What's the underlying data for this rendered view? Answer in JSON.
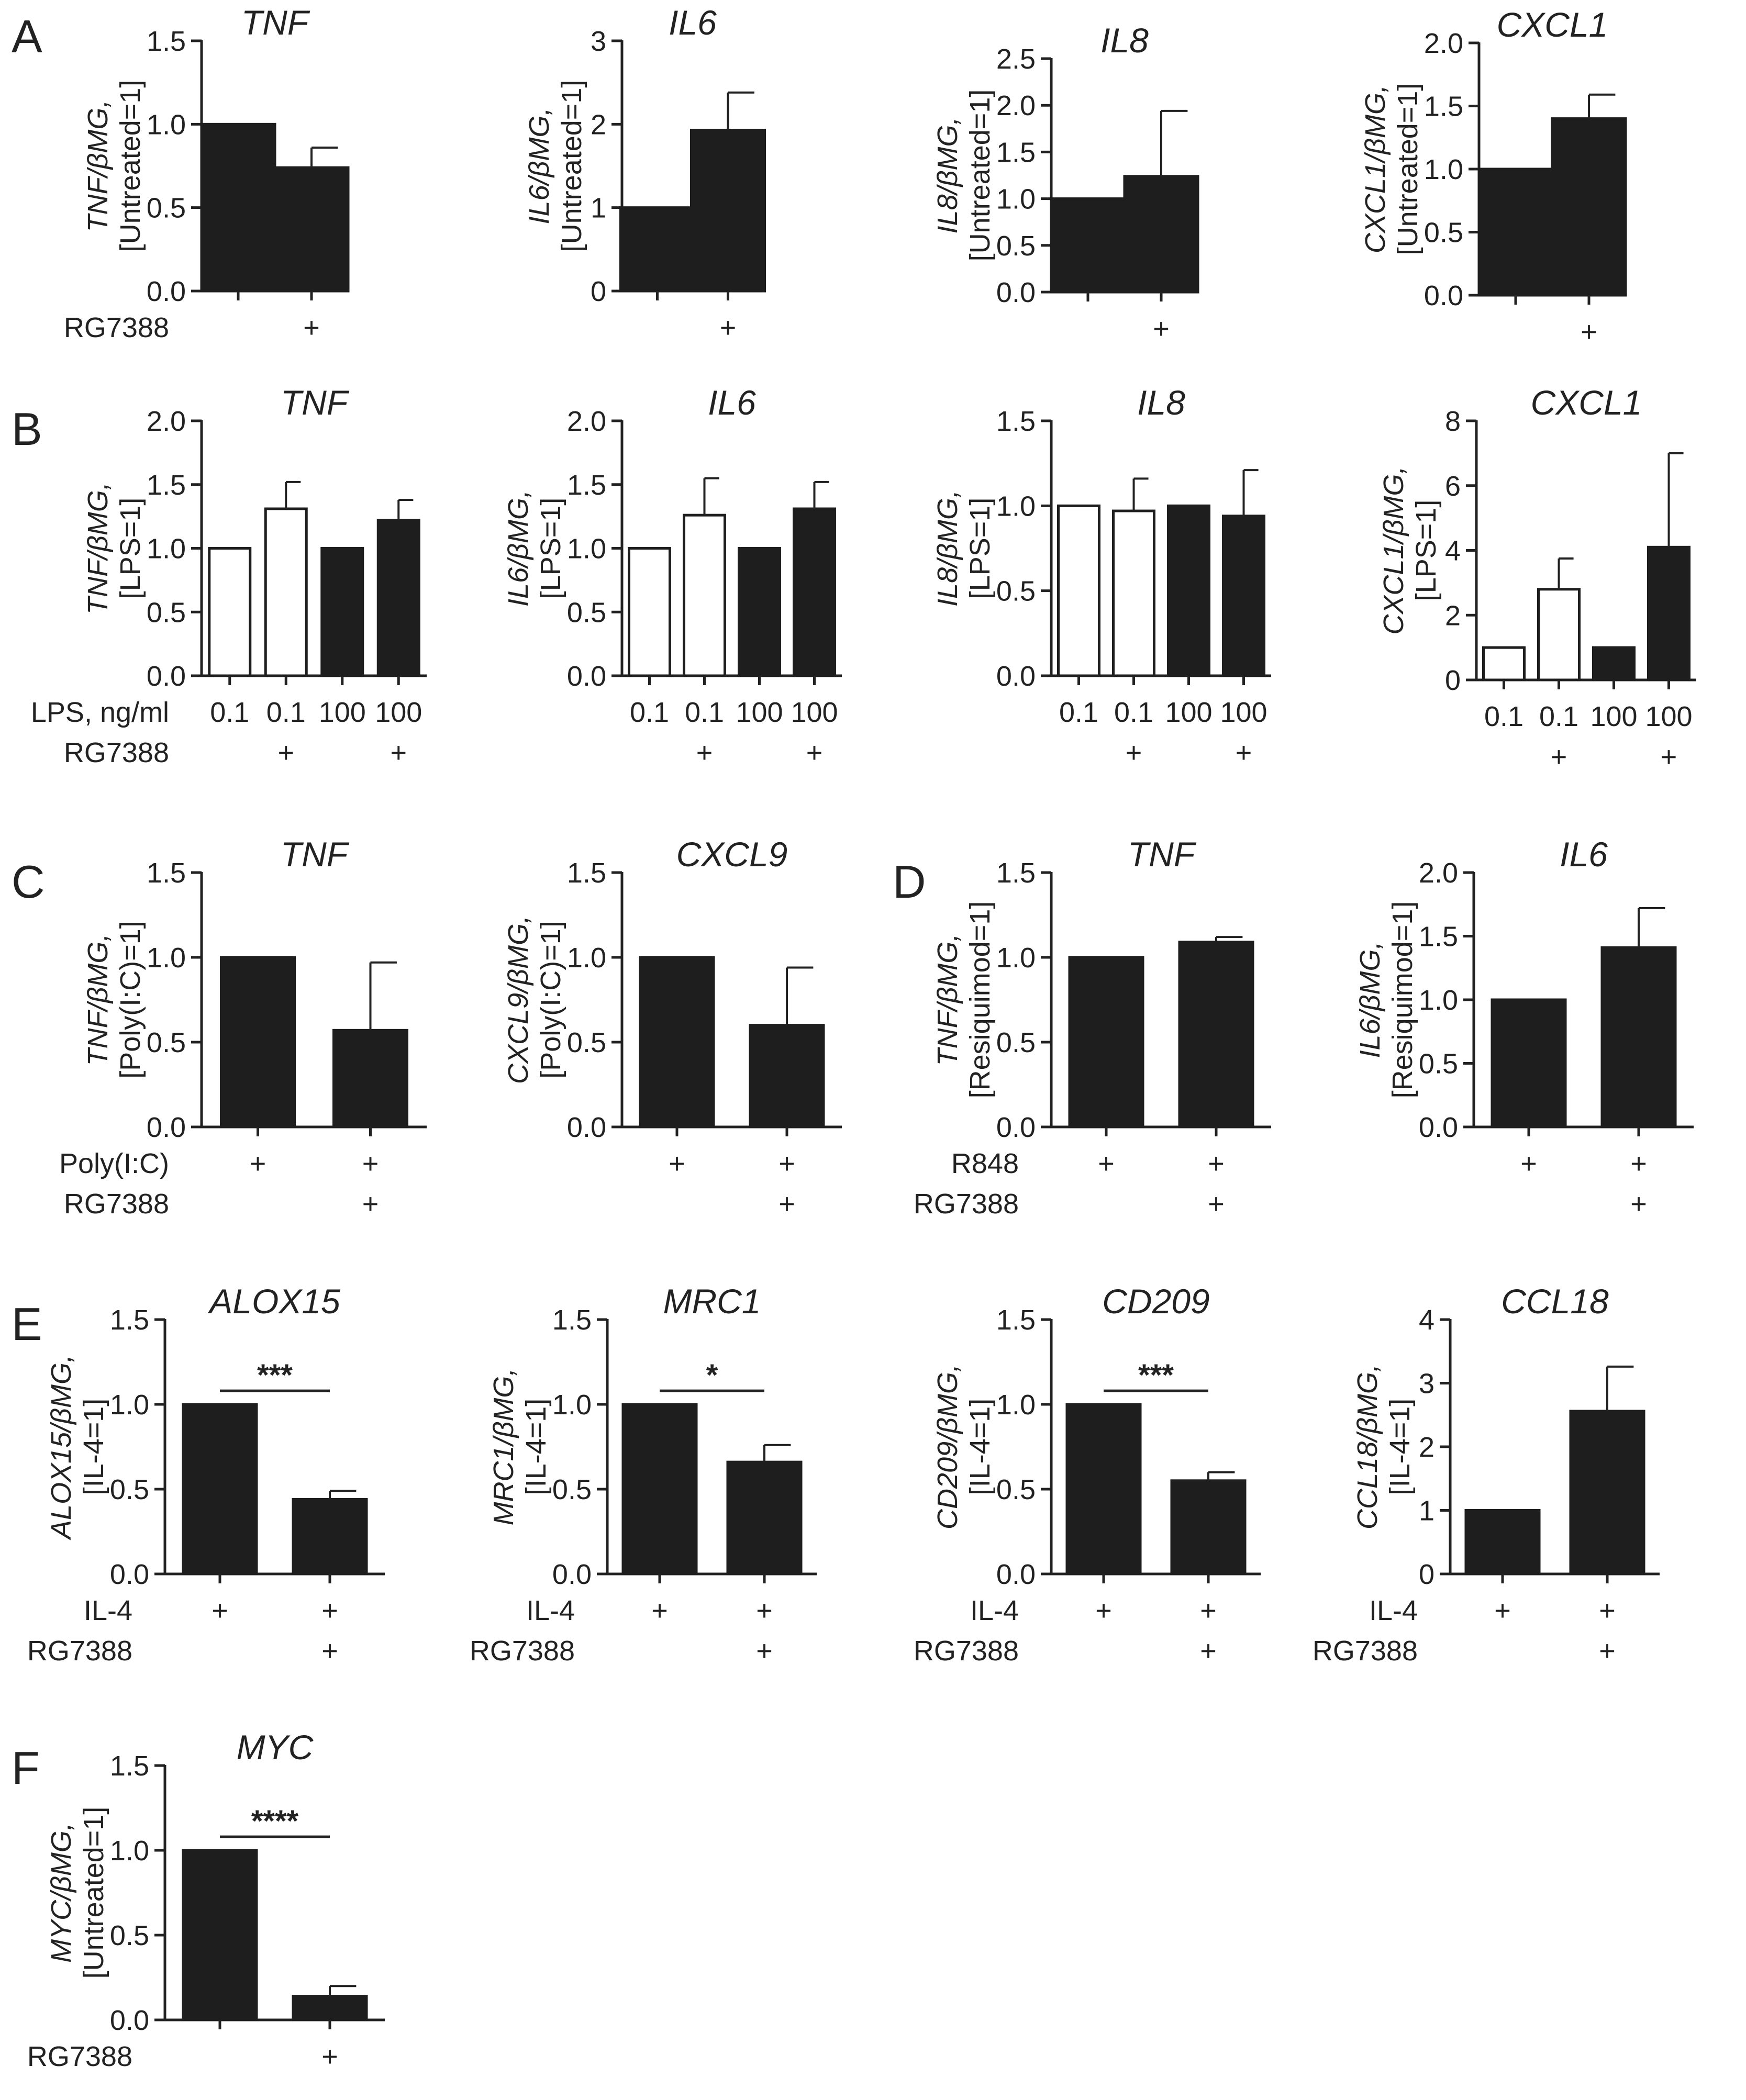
{
  "figure": {
    "panel_labels": [
      "A",
      "B",
      "C",
      "D",
      "E",
      "F"
    ],
    "colors": {
      "filled_bar": "#1e1e1e",
      "open_bar": "#ffffff",
      "axis": "#222222"
    }
  },
  "chart_data": [
    {
      "id": "A1",
      "panel": "A",
      "type": "bar",
      "title": "TNF",
      "ylabel": [
        "TNF/βMG,",
        "[Untreated=1]"
      ],
      "ylim": [
        0,
        1.5
      ],
      "yticks": [
        "0.0",
        "0.5",
        "1.0",
        "1.5"
      ],
      "values": [
        1.0,
        0.74
      ],
      "errors": [
        0,
        0.12
      ],
      "bar_fill": [
        "black",
        "black"
      ],
      "rows": [
        {
          "label": "RG7388",
          "marks": [
            "",
            "+"
          ]
        }
      ]
    },
    {
      "id": "A2",
      "panel": "A",
      "type": "bar",
      "title": "IL6",
      "ylabel": [
        "IL6/βMG,",
        "[Untreated=1]"
      ],
      "ylim": [
        0,
        3
      ],
      "yticks": [
        "0",
        "1",
        "2",
        "3"
      ],
      "values": [
        1.0,
        1.93
      ],
      "errors": [
        0,
        0.45
      ],
      "bar_fill": [
        "black",
        "black"
      ],
      "rows": [
        {
          "label": "",
          "marks": [
            "",
            "+"
          ]
        }
      ]
    },
    {
      "id": "A3",
      "panel": "A",
      "type": "bar",
      "title": "IL8",
      "ylabel": [
        "IL8/βMG,",
        "[Untreated=1]"
      ],
      "ylim": [
        0,
        2.5
      ],
      "yticks": [
        "0.0",
        "0.5",
        "1.0",
        "1.5",
        "2.0",
        "2.5"
      ],
      "values": [
        1.0,
        1.24
      ],
      "errors": [
        0,
        0.7
      ],
      "bar_fill": [
        "black",
        "black"
      ],
      "rows": [
        {
          "label": "",
          "marks": [
            "",
            "+"
          ]
        }
      ]
    },
    {
      "id": "A4",
      "panel": "A",
      "type": "bar",
      "title": "CXCL1",
      "ylabel": [
        "CXCL1/βMG,",
        "[Untreated=1]"
      ],
      "ylim": [
        0,
        2.0
      ],
      "yticks": [
        "0.0",
        "0.5",
        "1.0",
        "1.5",
        "2.0"
      ],
      "values": [
        1.0,
        1.4
      ],
      "errors": [
        0,
        0.19
      ],
      "bar_fill": [
        "black",
        "black"
      ],
      "rows": [
        {
          "label": "",
          "marks": [
            "",
            "+"
          ]
        }
      ]
    },
    {
      "id": "B1",
      "panel": "B",
      "type": "bar",
      "title": "TNF",
      "ylabel": [
        "TNF/βMG,",
        "[LPS=1]"
      ],
      "ylim": [
        0,
        2.0
      ],
      "yticks": [
        "0.0",
        "0.5",
        "1.0",
        "1.5",
        "2.0"
      ],
      "values": [
        1.0,
        1.31,
        1.0,
        1.22
      ],
      "errors": [
        0,
        0.21,
        0,
        0.16
      ],
      "bar_fill": [
        "white",
        "white",
        "black",
        "black"
      ],
      "rows": [
        {
          "label": "LPS, ng/ml",
          "marks": [
            "0.1",
            "0.1",
            "100",
            "100"
          ]
        },
        {
          "label": "RG7388",
          "marks": [
            "",
            "+",
            "",
            "+"
          ]
        }
      ]
    },
    {
      "id": "B2",
      "panel": "B",
      "type": "bar",
      "title": "IL6",
      "ylabel": [
        "IL6/βMG,",
        "[LPS=1]"
      ],
      "ylim": [
        0,
        2.0
      ],
      "yticks": [
        "0.0",
        "0.5",
        "1.0",
        "1.5",
        "2.0"
      ],
      "values": [
        1.0,
        1.26,
        1.0,
        1.31
      ],
      "errors": [
        0,
        0.29,
        0,
        0.21
      ],
      "bar_fill": [
        "white",
        "white",
        "black",
        "black"
      ],
      "rows": [
        {
          "label": "",
          "marks": [
            "0.1",
            "0.1",
            "100",
            "100"
          ]
        },
        {
          "label": "",
          "marks": [
            "",
            "+",
            "",
            "+"
          ]
        }
      ]
    },
    {
      "id": "B3",
      "panel": "B",
      "type": "bar",
      "title": "IL8",
      "ylabel": [
        "IL8/βMG,",
        "[LPS=1]"
      ],
      "ylim": [
        0,
        1.5
      ],
      "yticks": [
        "0.0",
        "0.5",
        "1.0",
        "1.5"
      ],
      "values": [
        1.0,
        0.97,
        1.0,
        0.94
      ],
      "errors": [
        0,
        0.19,
        0,
        0.27
      ],
      "bar_fill": [
        "white",
        "white",
        "black",
        "black"
      ],
      "rows": [
        {
          "label": "",
          "marks": [
            "0.1",
            "0.1",
            "100",
            "100"
          ]
        },
        {
          "label": "",
          "marks": [
            "",
            "+",
            "",
            "+"
          ]
        }
      ]
    },
    {
      "id": "B4",
      "panel": "B",
      "type": "bar",
      "title": "CXCL1",
      "ylabel": [
        "CXCL1/βMG,",
        "[LPS=1]"
      ],
      "ylim": [
        0,
        8
      ],
      "yticks": [
        "0",
        "2",
        "4",
        "6",
        "8"
      ],
      "values": [
        1.0,
        2.8,
        1.0,
        4.1
      ],
      "errors": [
        0,
        0.95,
        0,
        2.9
      ],
      "bar_fill": [
        "white",
        "white",
        "black",
        "black"
      ],
      "rows": [
        {
          "label": "",
          "marks": [
            "0.1",
            "0.1",
            "100",
            "100"
          ]
        },
        {
          "label": "",
          "marks": [
            "",
            "+",
            "",
            "+"
          ]
        }
      ]
    },
    {
      "id": "C1",
      "panel": "C",
      "type": "bar",
      "title": "TNF",
      "ylabel": [
        "TNF/βMG,",
        "[Poly(I:C)=1]"
      ],
      "ylim": [
        0,
        1.5
      ],
      "yticks": [
        "0.0",
        "0.5",
        "1.0",
        "1.5"
      ],
      "values": [
        1.0,
        0.57
      ],
      "errors": [
        0,
        0.4
      ],
      "bar_fill": [
        "black",
        "black"
      ],
      "rows": [
        {
          "label": "Poly(I:C)",
          "marks": [
            "+",
            "+"
          ]
        },
        {
          "label": "RG7388",
          "marks": [
            "",
            "+"
          ]
        }
      ]
    },
    {
      "id": "C2",
      "panel": "C",
      "type": "bar",
      "title": "CXCL9",
      "ylabel": [
        "CXCL9/βMG,",
        "[Poly(I:C)=1]"
      ],
      "ylim": [
        0,
        1.5
      ],
      "yticks": [
        "0.0",
        "0.5",
        "1.0",
        "1.5"
      ],
      "values": [
        1.0,
        0.6
      ],
      "errors": [
        0,
        0.34
      ],
      "bar_fill": [
        "black",
        "black"
      ],
      "rows": [
        {
          "label": "",
          "marks": [
            "+",
            "+"
          ]
        },
        {
          "label": "",
          "marks": [
            "",
            "+"
          ]
        }
      ]
    },
    {
      "id": "D1",
      "panel": "D",
      "type": "bar",
      "title": "TNF",
      "ylabel": [
        "TNF/βMG,",
        "[Resiquimod=1]"
      ],
      "ylim": [
        0,
        1.5
      ],
      "yticks": [
        "0.0",
        "0.5",
        "1.0",
        "1.5"
      ],
      "values": [
        1.0,
        1.09
      ],
      "errors": [
        0,
        0.03
      ],
      "bar_fill": [
        "black",
        "black"
      ],
      "rows": [
        {
          "label": "R848",
          "marks": [
            "+",
            "+"
          ]
        },
        {
          "label": "RG7388",
          "marks": [
            "",
            "+"
          ]
        }
      ]
    },
    {
      "id": "D2",
      "panel": "D",
      "type": "bar",
      "title": "IL6",
      "ylabel": [
        "IL6/βMG,",
        "[Resiquimod=1]"
      ],
      "ylim": [
        0,
        2.0
      ],
      "yticks": [
        "0.0",
        "0.5",
        "1.0",
        "1.5",
        "2.0"
      ],
      "values": [
        1.0,
        1.41
      ],
      "errors": [
        0,
        0.31
      ],
      "bar_fill": [
        "black",
        "black"
      ],
      "rows": [
        {
          "label": "",
          "marks": [
            "+",
            "+"
          ]
        },
        {
          "label": "",
          "marks": [
            "",
            "+"
          ]
        }
      ]
    },
    {
      "id": "E1",
      "panel": "E",
      "type": "bar",
      "title": "ALOX15",
      "ylabel": [
        "ALOX15/βMG,",
        "[IL-4=1]"
      ],
      "ylim": [
        0,
        1.5
      ],
      "yticks": [
        "0.0",
        "0.5",
        "1.0",
        "1.5"
      ],
      "values": [
        1.0,
        0.44
      ],
      "errors": [
        0,
        0.05
      ],
      "bar_fill": [
        "black",
        "black"
      ],
      "significance": {
        "text": "***",
        "y": 1.08
      },
      "rows": [
        {
          "label": "IL-4",
          "marks": [
            "+",
            "+"
          ]
        },
        {
          "label": "RG7388",
          "marks": [
            "",
            "+"
          ]
        }
      ]
    },
    {
      "id": "E2",
      "panel": "E",
      "type": "bar",
      "title": "MRC1",
      "ylabel": [
        "MRC1/βMG,",
        "[IL-4=1]"
      ],
      "ylim": [
        0,
        1.5
      ],
      "yticks": [
        "0.0",
        "0.5",
        "1.0",
        "1.5"
      ],
      "values": [
        1.0,
        0.66
      ],
      "errors": [
        0,
        0.1
      ],
      "bar_fill": [
        "black",
        "black"
      ],
      "significance": {
        "text": "*",
        "y": 1.08
      },
      "rows": [
        {
          "label": "IL-4",
          "marks": [
            "+",
            "+"
          ]
        },
        {
          "label": "RG7388",
          "marks": [
            "",
            "+"
          ]
        }
      ]
    },
    {
      "id": "E3",
      "panel": "E",
      "type": "bar",
      "title": "CD209",
      "ylabel": [
        "CD209/βMG,",
        "[IL-4=1]"
      ],
      "ylim": [
        0,
        1.5
      ],
      "yticks": [
        "0.0",
        "0.5",
        "1.0",
        "1.5"
      ],
      "values": [
        1.0,
        0.55
      ],
      "errors": [
        0,
        0.05
      ],
      "bar_fill": [
        "black",
        "black"
      ],
      "significance": {
        "text": "***",
        "y": 1.08
      },
      "rows": [
        {
          "label": "IL-4",
          "marks": [
            "+",
            "+"
          ]
        },
        {
          "label": "RG7388",
          "marks": [
            "",
            "+"
          ]
        }
      ]
    },
    {
      "id": "E4",
      "panel": "E",
      "type": "bar",
      "title": "CCL18",
      "ylabel": [
        "CCL18/βMG,",
        "[IL-4=1]"
      ],
      "ylim": [
        0,
        4
      ],
      "yticks": [
        "0",
        "1",
        "2",
        "3",
        "4"
      ],
      "values": [
        1.0,
        2.56
      ],
      "errors": [
        0,
        0.7
      ],
      "bar_fill": [
        "black",
        "black"
      ],
      "rows": [
        {
          "label": "IL-4",
          "marks": [
            "+",
            "+"
          ]
        },
        {
          "label": "RG7388",
          "marks": [
            "",
            "+"
          ]
        }
      ]
    },
    {
      "id": "F1",
      "panel": "F",
      "type": "bar",
      "title": "MYC",
      "ylabel": [
        "MYC/βMG,",
        "[Untreated=1]"
      ],
      "ylim": [
        0,
        1.5
      ],
      "yticks": [
        "0.0",
        "0.5",
        "1.0",
        "1.5"
      ],
      "values": [
        1.0,
        0.14
      ],
      "errors": [
        0,
        0.06
      ],
      "bar_fill": [
        "black",
        "black"
      ],
      "significance": {
        "text": "****",
        "y": 1.08
      },
      "rows": [
        {
          "label": "RG7388",
          "marks": [
            "",
            "+"
          ]
        }
      ]
    }
  ]
}
